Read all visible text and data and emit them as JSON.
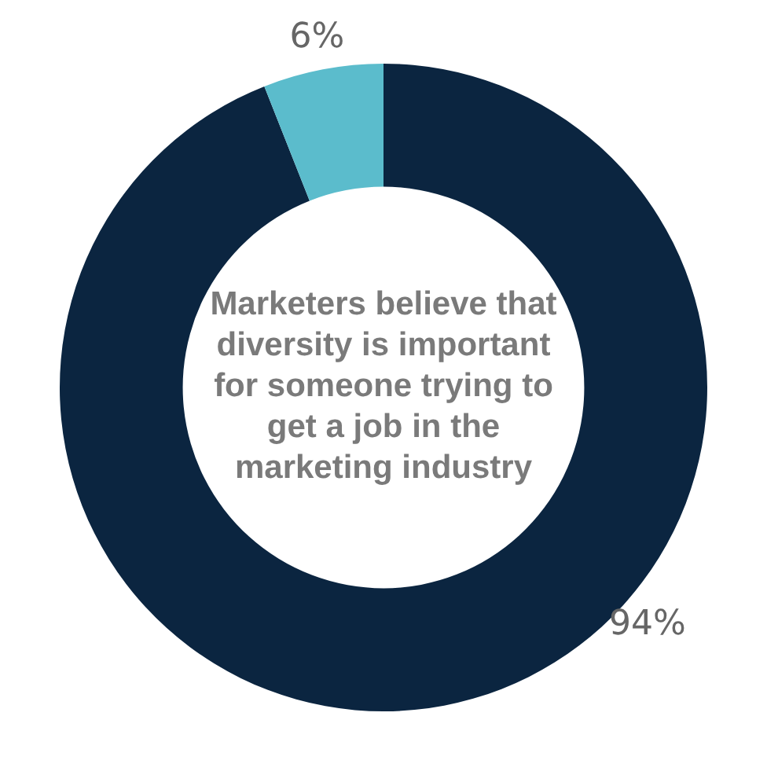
{
  "chart_data": {
    "type": "donut",
    "title": "Marketers believe that diversity is important for someone trying to get a job in the marketing industry",
    "categories": [
      null,
      null
    ],
    "values": [
      94,
      6
    ],
    "colors": [
      "#0b2540",
      "#5bbccc"
    ],
    "value_labels": [
      "94%",
      "6%"
    ],
    "legend": false
  }
}
